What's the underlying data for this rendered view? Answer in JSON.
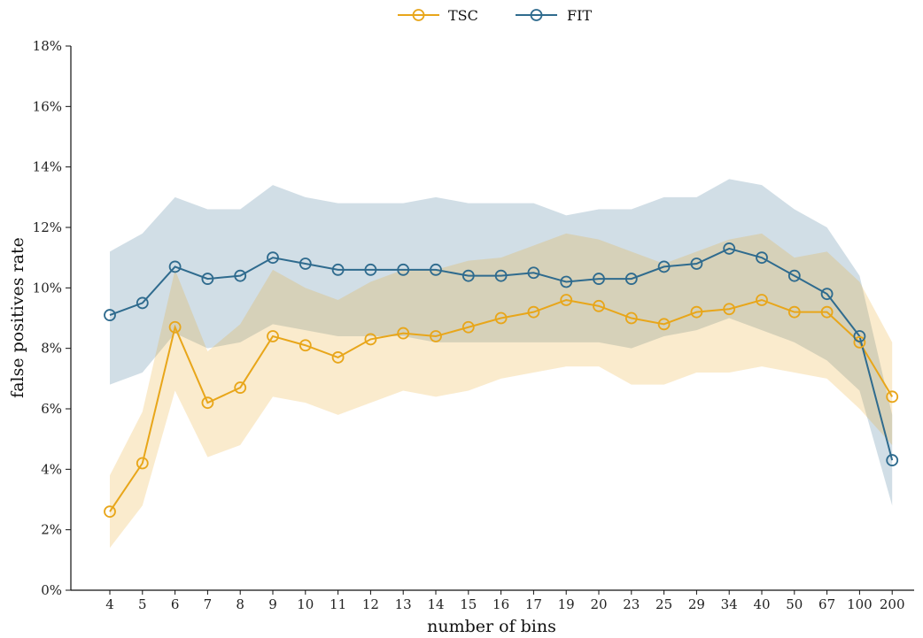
{
  "chart_data": {
    "type": "line",
    "xlabel": "number of bins",
    "ylabel": "false positives rate",
    "y_ticks": [
      "0%",
      "2%",
      "4%",
      "6%",
      "8%",
      "10%",
      "12%",
      "14%",
      "16%",
      "18%"
    ],
    "ylim": [
      0,
      18
    ],
    "y_unit": "%",
    "grid": false,
    "legend_position": "top-center",
    "categories": [
      "4",
      "5",
      "6",
      "7",
      "8",
      "9",
      "10",
      "11",
      "12",
      "13",
      "14",
      "15",
      "16",
      "17",
      "19",
      "20",
      "23",
      "25",
      "29",
      "34",
      "40",
      "50",
      "67",
      "100",
      "200"
    ],
    "series": [
      {
        "name": "TSC",
        "color": "#e8a61a",
        "values": [
          2.6,
          4.2,
          8.7,
          6.2,
          6.7,
          8.4,
          8.1,
          7.7,
          8.3,
          8.5,
          8.4,
          8.7,
          9.0,
          9.2,
          9.6,
          9.4,
          9.0,
          8.8,
          9.2,
          9.3,
          9.6,
          9.2,
          9.2,
          8.2,
          6.4
        ],
        "lower": [
          1.4,
          2.8,
          6.6,
          4.4,
          4.8,
          6.4,
          6.2,
          5.8,
          6.2,
          6.6,
          6.4,
          6.6,
          7.0,
          7.2,
          7.4,
          7.4,
          6.8,
          6.8,
          7.2,
          7.2,
          7.4,
          7.2,
          7.0,
          6.0,
          4.8
        ],
        "upper": [
          3.8,
          5.9,
          10.6,
          7.9,
          8.8,
          10.6,
          10.0,
          9.6,
          10.2,
          10.6,
          10.6,
          10.9,
          11.0,
          11.4,
          11.8,
          11.6,
          11.2,
          10.8,
          11.2,
          11.6,
          11.8,
          11.0,
          11.2,
          10.2,
          8.2
        ]
      },
      {
        "name": "FIT",
        "color": "#2f6b8e",
        "values": [
          9.1,
          9.5,
          10.7,
          10.3,
          10.4,
          11.0,
          10.8,
          10.6,
          10.6,
          10.6,
          10.6,
          10.4,
          10.4,
          10.5,
          10.2,
          10.3,
          10.3,
          10.7,
          10.8,
          11.3,
          11.0,
          10.4,
          9.8,
          8.4,
          4.3
        ],
        "lower": [
          6.8,
          7.2,
          8.5,
          8.0,
          8.2,
          8.8,
          8.6,
          8.4,
          8.4,
          8.4,
          8.2,
          8.2,
          8.2,
          8.2,
          8.2,
          8.2,
          8.0,
          8.4,
          8.6,
          9.0,
          8.6,
          8.2,
          7.6,
          6.6,
          2.8
        ],
        "upper": [
          11.2,
          11.8,
          13.0,
          12.6,
          12.6,
          13.4,
          13.0,
          12.8,
          12.8,
          12.8,
          13.0,
          12.8,
          12.8,
          12.8,
          12.4,
          12.6,
          12.6,
          13.0,
          13.0,
          13.6,
          13.4,
          12.6,
          12.0,
          10.4,
          5.8
        ]
      }
    ]
  }
}
